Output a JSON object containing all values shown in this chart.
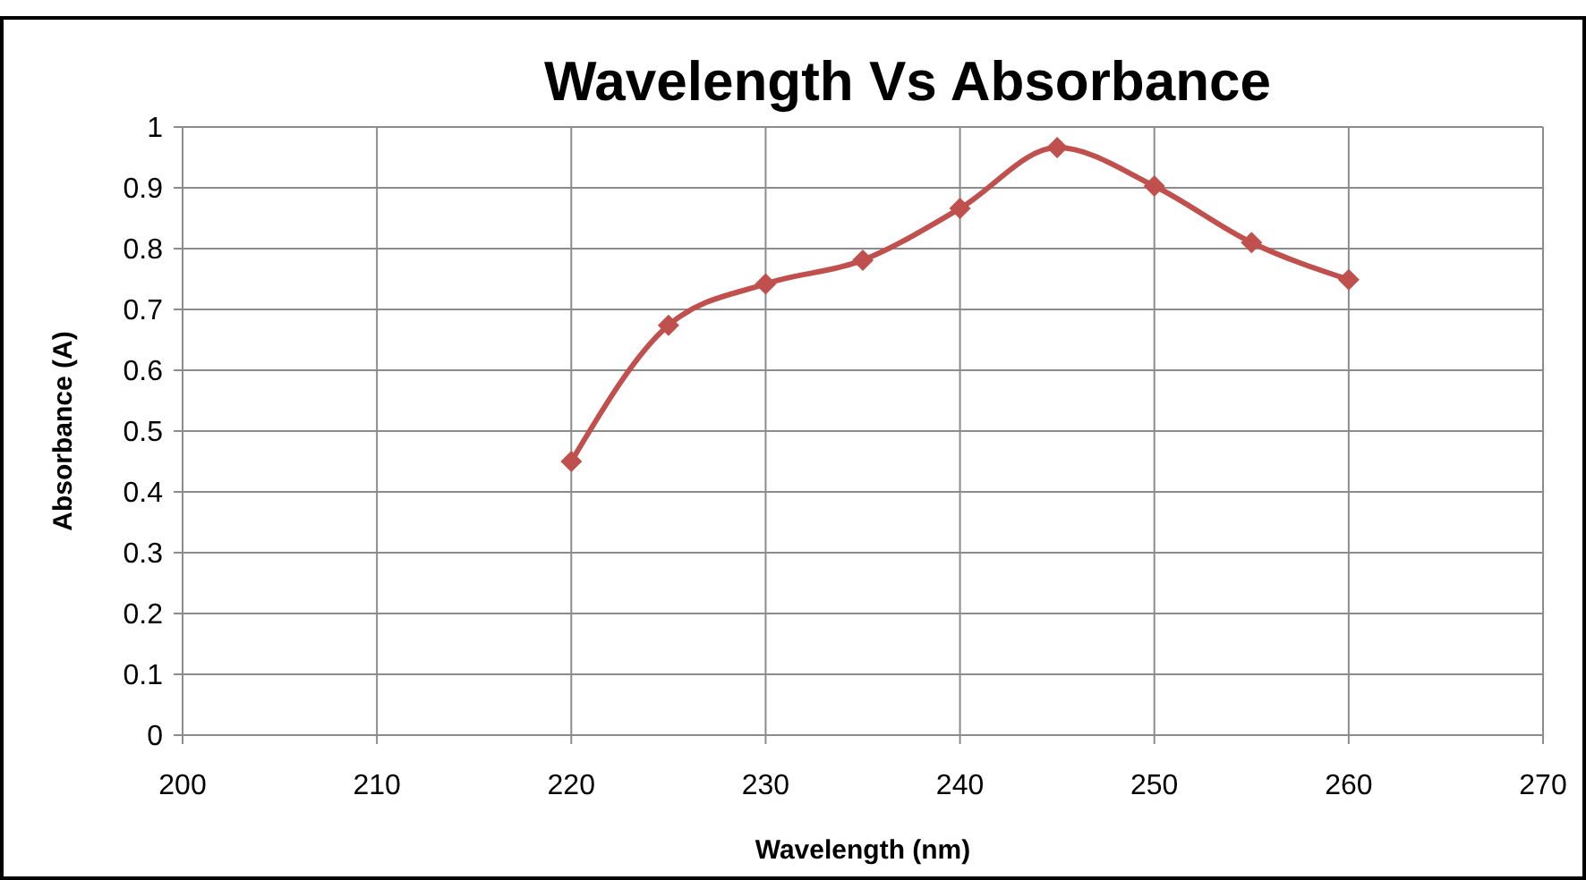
{
  "chart_data": {
    "type": "line",
    "title": "Wavelength Vs Absorbance",
    "xlabel": "Wavelength (nm)",
    "ylabel": "Absorbance (A)",
    "x": [
      220,
      225,
      230,
      235,
      240,
      245,
      250,
      255,
      260
    ],
    "series": [
      {
        "color": "#c0504d",
        "values": [
          0.45,
          0.674,
          0.742,
          0.781,
          0.866,
          0.966,
          0.903,
          0.81,
          0.749
        ]
      }
    ],
    "xlim": [
      200,
      270
    ],
    "xticks": [
      200,
      210,
      220,
      230,
      240,
      250,
      260,
      270
    ],
    "ylim": [
      0,
      1
    ],
    "yticks": [
      0,
      0.1,
      0.2,
      0.3,
      0.4,
      0.5,
      0.6,
      0.7,
      0.8,
      0.9,
      1
    ],
    "grid": true,
    "marker": "diamond",
    "line_style": "solid"
  }
}
